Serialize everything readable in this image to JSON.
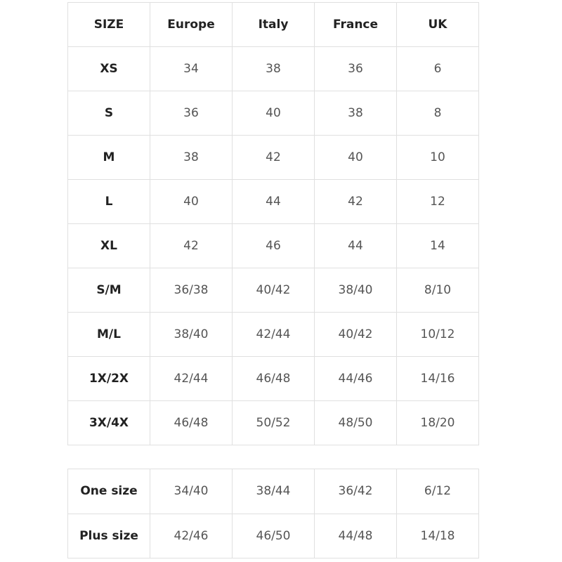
{
  "size_table": {
    "headers": [
      "SIZE",
      "Europe",
      "Italy",
      "France",
      "UK"
    ],
    "rows": [
      [
        "XS",
        "34",
        "38",
        "36",
        "6"
      ],
      [
        "S",
        "36",
        "40",
        "38",
        "8"
      ],
      [
        "M",
        "38",
        "42",
        "40",
        "10"
      ],
      [
        "L",
        "40",
        "44",
        "42",
        "12"
      ],
      [
        "XL",
        "42",
        "46",
        "44",
        "14"
      ],
      [
        "S/M",
        "36/38",
        "40/42",
        "38/40",
        "8/10"
      ],
      [
        "M/L",
        "38/40",
        "42/44",
        "40/42",
        "10/12"
      ],
      [
        "1X/2X",
        "42/44",
        "46/48",
        "44/46",
        "14/16"
      ],
      [
        "3X/4X",
        "46/48",
        "50/52",
        "48/50",
        "18/20"
      ]
    ]
  },
  "general_table": {
    "rows": [
      [
        "One size",
        "34/40",
        "38/44",
        "36/42",
        "6/12"
      ],
      [
        "Plus size",
        "42/46",
        "46/50",
        "44/48",
        "14/18"
      ]
    ]
  }
}
